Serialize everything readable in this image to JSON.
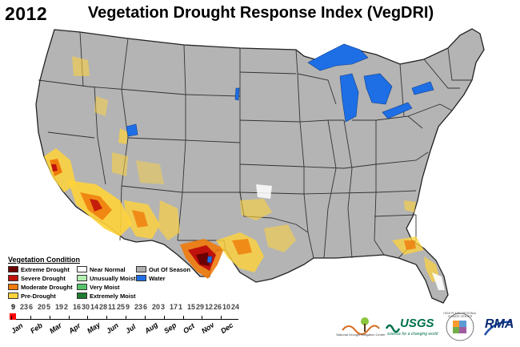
{
  "header": {
    "year": "2012",
    "title": "Vegetation Drought Response Index (VegDRI)"
  },
  "legend": {
    "title": "Vegetation Condition",
    "items": [
      {
        "label": "Extreme Drought",
        "color": "#6b0000"
      },
      {
        "label": "Severe Drought",
        "color": "#c0120c"
      },
      {
        "label": "Moderate Drought",
        "color": "#f07a0a"
      },
      {
        "label": "Pre-Drought",
        "color": "#ffd33a"
      },
      {
        "label": "Near Normal",
        "color": "#ffffff"
      },
      {
        "label": "Unusually Moist",
        "color": "#b3f0b3"
      },
      {
        "label": "Very Moist",
        "color": "#55c46b"
      },
      {
        "label": "Extremely Moist",
        "color": "#1f7a34"
      },
      {
        "label": "Out Of Season",
        "color": "#b0b0b0"
      },
      {
        "label": "Water",
        "color": "#1e6fe6"
      }
    ]
  },
  "timeline": {
    "weeks": [
      "9",
      "23",
      "6",
      "20",
      "5",
      "19",
      "2",
      "16",
      "30",
      "14",
      "28",
      "11",
      "25",
      "9",
      "23",
      "6",
      "20",
      "3",
      "17",
      "1",
      "15",
      "29",
      "12",
      "26",
      "10",
      "24"
    ],
    "months": [
      "Jan",
      "Feb",
      "Mar",
      "Apr",
      "May",
      "Jun",
      "Jul",
      "Aug",
      "Sep",
      "Oct",
      "Nov",
      "Dec"
    ],
    "active_index": 0
  },
  "logos": {
    "ndmc": "National Drought Mitigation Center",
    "usgs": "USGS",
    "usgs_tag": "science for a changing world",
    "hprcc": "HIGH PLAINS REGIONAL CLIMATE CENTER",
    "rma": "RMA"
  },
  "colors": {
    "land": "#b4b4b4",
    "border": "#222222",
    "water": "#1e6fe6"
  }
}
